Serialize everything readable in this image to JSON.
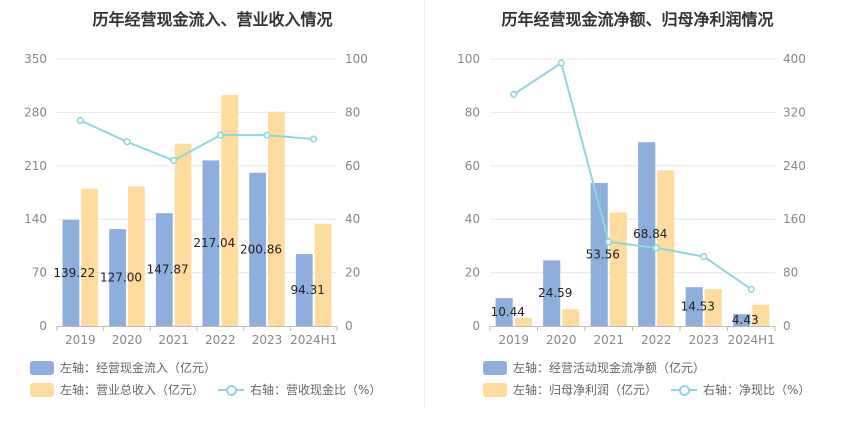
{
  "colors": {
    "bar1": "#8eaedd",
    "bar2": "#ffdb9e",
    "line": "#8fd6de",
    "grid": "#e6e6f0",
    "axis": "#bbbbbb"
  },
  "chart_data": [
    {
      "type": "bar",
      "title": "历年经营现金流入、营业收入情况",
      "categories": [
        "2019",
        "2020",
        "2021",
        "2022",
        "2023",
        "2024H1"
      ],
      "ylim_left": [
        0,
        350
      ],
      "yticks_left": [
        "0",
        "70",
        "140",
        "210",
        "280",
        "350"
      ],
      "ylim_right": [
        0,
        100
      ],
      "yticks_right": [
        "0",
        "20",
        "40",
        "60",
        "80",
        "100"
      ],
      "series": [
        {
          "name": "左轴：经营现金流入（亿元）",
          "axis": "left",
          "type": "bar",
          "values": [
            139.22,
            127.0,
            147.87,
            217.04,
            200.86,
            94.31
          ],
          "labels": [
            "139.22",
            "127.00",
            "147.87",
            "217.04",
            "200.86",
            "94.31"
          ]
        },
        {
          "name": "左轴：营业总收入（亿元）",
          "axis": "left",
          "type": "bar",
          "values": [
            180,
            183,
            239,
            303,
            281,
            134
          ]
        },
        {
          "name": "右轴：营收现金比（%）",
          "axis": "right",
          "type": "line",
          "values": [
            77,
            69,
            62,
            71.5,
            71.5,
            70
          ]
        }
      ],
      "grid": true,
      "legend_position": "bottom-left"
    },
    {
      "type": "bar",
      "title": "历年经营现金流净额、归母净利润情况",
      "categories": [
        "2019",
        "2020",
        "2021",
        "2022",
        "2023",
        "2024H1"
      ],
      "ylim_left": [
        0,
        100
      ],
      "yticks_left": [
        "0",
        "20",
        "40",
        "60",
        "80",
        "100"
      ],
      "ylim_right": [
        0,
        400
      ],
      "yticks_right": [
        "0",
        "80",
        "160",
        "240",
        "320",
        "400"
      ],
      "series": [
        {
          "name": "左轴：经营活动现金流净额（亿元）",
          "axis": "left",
          "type": "bar",
          "values": [
            10.44,
            24.59,
            53.56,
            68.84,
            14.53,
            4.43
          ],
          "labels": [
            "10.44",
            "24.59",
            "53.56",
            "68.84",
            "14.53",
            "4.43"
          ]
        },
        {
          "name": "左轴：归母净利润（亿元）",
          "axis": "left",
          "type": "bar",
          "values": [
            3,
            6.3,
            42.5,
            58.3,
            13.8,
            8
          ]
        },
        {
          "name": "右轴：净现比（%）",
          "axis": "right",
          "type": "line",
          "values": [
            347,
            394,
            126,
            117,
            104,
            55
          ]
        }
      ],
      "grid": true,
      "legend_position": "bottom-left"
    }
  ]
}
